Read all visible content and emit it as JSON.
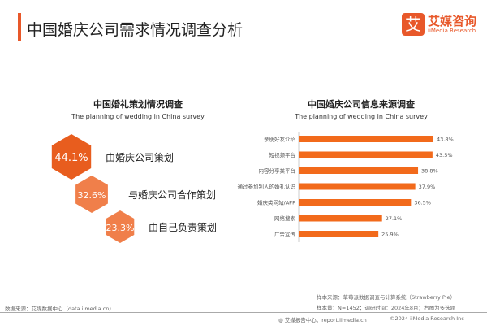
{
  "header": {
    "title": "中国婚庆公司需求情况调查分析",
    "logo_mark": "艾",
    "logo_cn": "艾媒咨询",
    "logo_en": "iiMedia Research"
  },
  "chart_data": [
    {
      "type": "hexagon-percent",
      "title": "中国婚礼策划情况调查",
      "subtitle": "The planning of wedding in China survey",
      "categories": [
        "由婚庆公司策划",
        "与婚庆公司合作策划",
        "由自己负责策划"
      ],
      "values": [
        44.1,
        32.6,
        23.3
      ],
      "labels": [
        "44.1%",
        "32.6%",
        "23.3%"
      ],
      "colors": [
        "#e85d1e",
        "#f07f4a",
        "#f07f4a"
      ]
    },
    {
      "type": "bar",
      "orientation": "horizontal",
      "title": "中国婚庆公司信息来源调查",
      "subtitle": "The planning of wedding in China survey",
      "categories": [
        "亲朋好友介绍",
        "短视频平台",
        "内容分享类平台",
        "通过参加别人的婚礼认识",
        "婚庆类网站/APP",
        "网络搜索",
        "广告宣传"
      ],
      "values": [
        43.8,
        43.5,
        38.8,
        37.9,
        36.5,
        27.1,
        25.9
      ],
      "labels": [
        "43.8%",
        "43.5%",
        "38.8%",
        "37.9%",
        "36.5%",
        "27.1%",
        "25.9%"
      ],
      "color": "#f26a1b"
    }
  ],
  "footer": {
    "source_left": "数据来源：艾媒数据中心（data.iimedia.cn）",
    "sample_source": "样本来源：草莓派数据调查与计算系统（Strawberry Pie）",
    "sample_info": "样本量：N=1452；调研时间：2024年8月；右图为多选题",
    "report": "艾媒报告中心：report.iimedia.cn",
    "copyright": "©2024  iiMedia Research Inc"
  }
}
